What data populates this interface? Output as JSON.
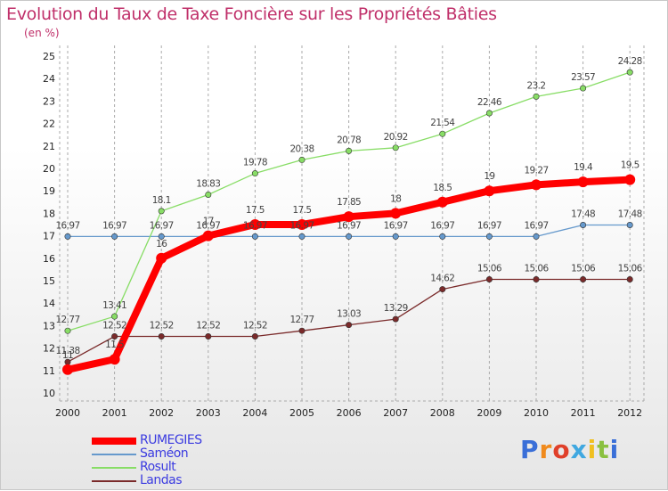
{
  "title": "Evolution du Taux de Taxe Foncière sur les Propriétés Bâties",
  "subtitle": "(en %)",
  "chart_data": {
    "type": "line",
    "title": "Evolution du Taux de Taxe Foncière sur les Propriétés Bâties",
    "ylabel": "(en %)",
    "xlabel": "",
    "categories": [
      "2000",
      "2001",
      "2002",
      "2003",
      "2004",
      "2005",
      "2006",
      "2007",
      "2008",
      "2009",
      "2010",
      "2011",
      "2012"
    ],
    "ylim": [
      10,
      25
    ],
    "yticks": [
      10,
      11,
      12,
      13,
      14,
      15,
      16,
      17,
      18,
      19,
      20,
      21,
      22,
      23,
      24,
      25
    ],
    "grid": "vertical-dashed",
    "legend_position": "bottom-left",
    "series": [
      {
        "name": "RUMEGIES",
        "color": "#ff0000",
        "values": [
          11.04,
          11.5,
          16,
          17,
          17.5,
          17.5,
          17.85,
          18,
          18.5,
          19,
          19.27,
          19.4,
          19.5
        ],
        "labels": [
          "11",
          "11.5",
          "16",
          "17",
          "17.5",
          "17.5",
          "17.85",
          "18",
          "18.5",
          "19",
          "19.27",
          "19.4",
          "19.5"
        ]
      },
      {
        "name": "Saméon",
        "color": "#6699cc",
        "values": [
          16.97,
          16.97,
          16.97,
          16.97,
          16.97,
          16.97,
          16.97,
          16.97,
          16.97,
          16.97,
          16.97,
          17.48,
          17.48
        ],
        "labels": [
          "16.97",
          "16.97",
          "16.97",
          "16.97",
          "16.97",
          "16.97",
          "16.97",
          "16.97",
          "16.97",
          "16.97",
          "16.97",
          "17.48",
          "17.48"
        ]
      },
      {
        "name": "Rosult",
        "color": "#88dd66",
        "values": [
          12.77,
          13.41,
          18.1,
          18.83,
          19.78,
          20.38,
          20.78,
          20.92,
          21.54,
          22.46,
          23.2,
          23.57,
          24.28
        ],
        "labels": [
          "12.77",
          "13.41",
          "18.1",
          "18.83",
          "19.78",
          "20.38",
          "20.78",
          "20.92",
          "21.54",
          "22.46",
          "23.2",
          "23.57",
          "24.28"
        ]
      },
      {
        "name": "Landas",
        "color": "#7a2a2a",
        "values": [
          11.38,
          12.52,
          12.52,
          12.52,
          12.52,
          12.77,
          13.03,
          13.29,
          14.62,
          15.06,
          15.06,
          15.06,
          15.06
        ],
        "labels": [
          "11.38",
          "12.52",
          "12.52",
          "12.52",
          "12.52",
          "12.77",
          "13.03",
          "13.29",
          "14.62",
          "15.06",
          "15.06",
          "15.06",
          "15.06"
        ]
      }
    ]
  },
  "logo": {
    "letters": [
      "P",
      "r",
      "o",
      "x",
      "i",
      "t",
      "i"
    ],
    "colors": [
      "#3a6fd8",
      "#f08a1c",
      "#e0402a",
      "#40a8e0",
      "#f0c020",
      "#8ac040",
      "#3a6fd8"
    ]
  }
}
